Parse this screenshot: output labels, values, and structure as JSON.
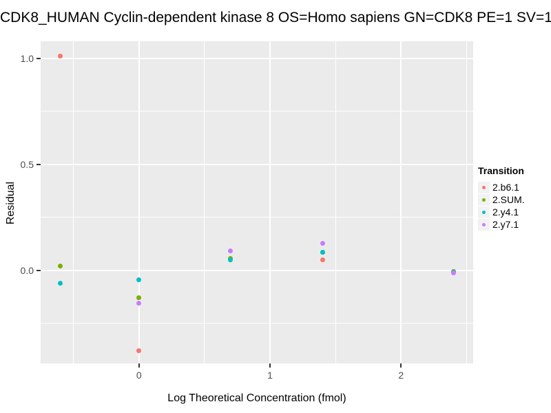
{
  "title": "CDK8_HUMAN Cyclin-dependent kinase 8 OS=Homo sapiens GN=CDK8 PE=1 SV=1",
  "chart_data": {
    "type": "scatter",
    "title": "CDK8_HUMAN Cyclin-dependent kinase 8 OS=Homo sapiens GN=CDK8 PE=1 SV=1",
    "xlabel": "Log Theoretical Concentration (fmol)",
    "ylabel": "Residual",
    "xlim": [
      -0.75,
      2.55
    ],
    "ylim": [
      -0.44,
      1.08
    ],
    "grid": true,
    "panel_bg": "#EBEBEB",
    "gridline_color": "#FFFFFF",
    "x_ticks": [
      {
        "value": 0,
        "label": "0"
      },
      {
        "value": 1,
        "label": "1"
      },
      {
        "value": 2,
        "label": "2"
      }
    ],
    "y_ticks": [
      {
        "value": 1.0,
        "label": "1.0"
      },
      {
        "value": 0.5,
        "label": "0.5"
      },
      {
        "value": 0.0,
        "label": "0.0"
      }
    ],
    "x_minor_ticks": [
      -0.5,
      0.5,
      1.5,
      2.5
    ],
    "y_minor_ticks": [
      0.75,
      0.25,
      -0.25
    ],
    "legend_title": "Transition",
    "legend_position": "right",
    "series": [
      {
        "name": "2.b6.1",
        "color": "#F8766D",
        "points": [
          [
            -0.6,
            1.01
          ],
          [
            0.0,
            -0.38
          ],
          [
            1.4,
            0.05
          ],
          [
            2.4,
            -0.005
          ]
        ]
      },
      {
        "name": "2.SUM.",
        "color": "#7CAE00",
        "points": [
          [
            -0.6,
            0.02
          ],
          [
            0.0,
            -0.13
          ],
          [
            0.7,
            0.055
          ],
          [
            1.4,
            0.085
          ],
          [
            2.4,
            -0.007
          ]
        ]
      },
      {
        "name": "2.y4.1",
        "color": "#00BFC4",
        "points": [
          [
            -0.6,
            -0.06
          ],
          [
            0.0,
            -0.045
          ],
          [
            0.7,
            0.048
          ],
          [
            1.4,
            0.085
          ],
          [
            2.4,
            -0.009
          ]
        ]
      },
      {
        "name": "2.y7.1",
        "color": "#C77CFF",
        "points": [
          [
            0.0,
            -0.155
          ],
          [
            0.7,
            0.09
          ],
          [
            1.4,
            0.127
          ],
          [
            2.4,
            -0.012
          ]
        ]
      }
    ]
  }
}
